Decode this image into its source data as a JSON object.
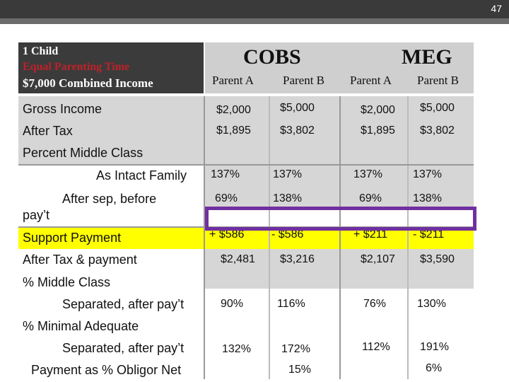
{
  "page_number": "47",
  "header": {
    "line1": "1 Child",
    "line2": "Equal Parenting Time",
    "line3": "$7,000 Combined Income",
    "groups": [
      "COBS",
      "MEG"
    ],
    "columns": [
      "Parent A",
      "Parent B",
      "Parent A",
      "Parent B"
    ]
  },
  "rows": {
    "gross_income": {
      "label": "Gross Income",
      "values": [
        "$2,000",
        "$5,000",
        "$2,000",
        "$5,000"
      ]
    },
    "after_tax": {
      "label": "After Tax",
      "values": [
        "$1,895",
        "$3,802",
        "$1,895",
        "$3,802"
      ]
    },
    "percent_middle_class": {
      "label": "Percent Middle Class"
    },
    "intact_family": {
      "label": "As Intact Family",
      "values": [
        "137%",
        "137%",
        "137%",
        "137%"
      ]
    },
    "after_sep": {
      "label": "After sep, before",
      "label2": "pay’t",
      "values": [
        "69%",
        "138%",
        "69%",
        "138%"
      ]
    },
    "support_payment": {
      "label": "Support Payment",
      "values": [
        "+ $586",
        "- $586",
        "+ $211",
        "- $211"
      ]
    },
    "after_tax_payment": {
      "label": "After Tax & payment",
      "values": [
        "$2,481",
        "$3,216",
        "$2,107",
        "$3,590"
      ]
    },
    "pct_middle_class": {
      "label": "% Middle Class"
    },
    "separated_mc": {
      "label": "Separated, after pay’t",
      "values": [
        "90%",
        "116%",
        "76%",
        "130%"
      ]
    },
    "pct_minimal": {
      "label": "% Minimal Adequate"
    },
    "separated_min": {
      "label": "Separated, after pay’t",
      "values": [
        "132%",
        "172%",
        "112%",
        "191%"
      ]
    },
    "payment_pct": {
      "label": "Payment as % Obligor Net",
      "values": [
        "",
        "15%",
        "",
        "6%"
      ]
    }
  }
}
